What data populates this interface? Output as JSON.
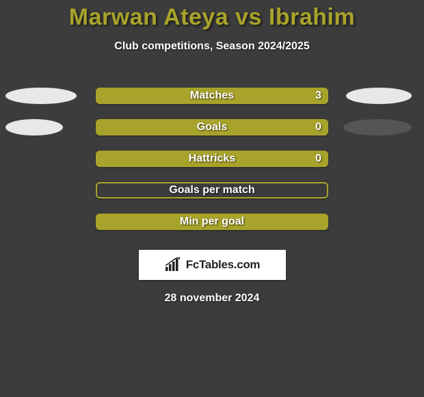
{
  "title": "Marwan Ateya vs Ibrahim",
  "subtitle": "Club competitions, Season 2024/2025",
  "colors": {
    "background": "#3c3c3c",
    "title": "#a8a32a",
    "text": "#ffffff",
    "bar_fill": "#a8a32a",
    "bar_border": "#a8a32a",
    "ellipse_left_0": "#e8e8e8",
    "ellipse_right_0": "#e8e8e8",
    "ellipse_left_1": "#e8e8e8",
    "ellipse_right_1": "#555555",
    "brand_box": "#ffffff",
    "brand_text": "#222222"
  },
  "ellipse": {
    "left_width": 104,
    "right_width": 96,
    "row1_left_width": 84,
    "row1_right_width": 100
  },
  "rows": [
    {
      "label": "Matches",
      "value": "3",
      "style": "fill",
      "show_ellipses": true
    },
    {
      "label": "Goals",
      "value": "0",
      "style": "fill",
      "show_ellipses": true
    },
    {
      "label": "Hattricks",
      "value": "0",
      "style": "fill",
      "show_ellipses": false
    },
    {
      "label": "Goals per match",
      "value": "",
      "style": "outline",
      "show_ellipses": false
    },
    {
      "label": "Min per goal",
      "value": "",
      "style": "fill",
      "show_ellipses": false
    }
  ],
  "brand": "FcTables.com",
  "date": "28 november 2024"
}
